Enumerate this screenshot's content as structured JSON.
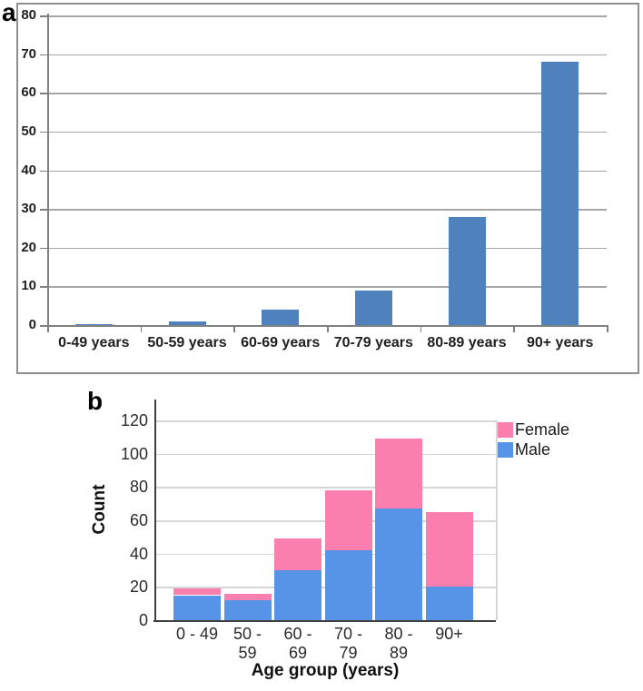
{
  "chart_data": [
    {
      "panel_label": "a",
      "type": "bar",
      "categories": [
        "0-49 years",
        "50-59 years",
        "60-69 years",
        "70-79 years",
        "80-89 years",
        "90+ years"
      ],
      "values": [
        0.3,
        1,
        4,
        9,
        28,
        68
      ],
      "title": "",
      "xlabel": "",
      "ylabel": "",
      "ylim": [
        0,
        80
      ],
      "yticks": [
        0,
        10,
        20,
        30,
        40,
        50,
        60,
        70,
        80
      ],
      "bar_color": "#4f81bd",
      "grid": true,
      "grid_color": "#a6a6a6",
      "axis_color": "#808080",
      "frame": true
    },
    {
      "panel_label": "b",
      "type": "stacked-bar",
      "categories": [
        [
          "0 - 49"
        ],
        [
          "50 -",
          "59"
        ],
        [
          "60 -",
          "69"
        ],
        [
          "70 -",
          "79"
        ],
        [
          "80 -",
          "89"
        ],
        [
          "90+"
        ]
      ],
      "series": [
        {
          "name": "Male",
          "color": "#5794e7",
          "values": [
            15,
            12,
            30,
            42,
            67,
            20
          ]
        },
        {
          "name": "Female",
          "color": "#fb7fae",
          "values": [
            4,
            4,
            19,
            36,
            42,
            45
          ]
        }
      ],
      "totals": [
        19,
        16,
        49,
        78,
        109,
        65
      ],
      "title": "",
      "xlabel": "Age group (years)",
      "ylabel": "Count",
      "ylim": [
        0,
        120
      ],
      "yticks": [
        0,
        20,
        40,
        60,
        80,
        100,
        120
      ],
      "legend": [
        "Female",
        "Male"
      ],
      "legend_position": "top-right",
      "grid": true,
      "grid_color": "#d6d6d6",
      "axis_color": "#3f3f3f"
    }
  ]
}
